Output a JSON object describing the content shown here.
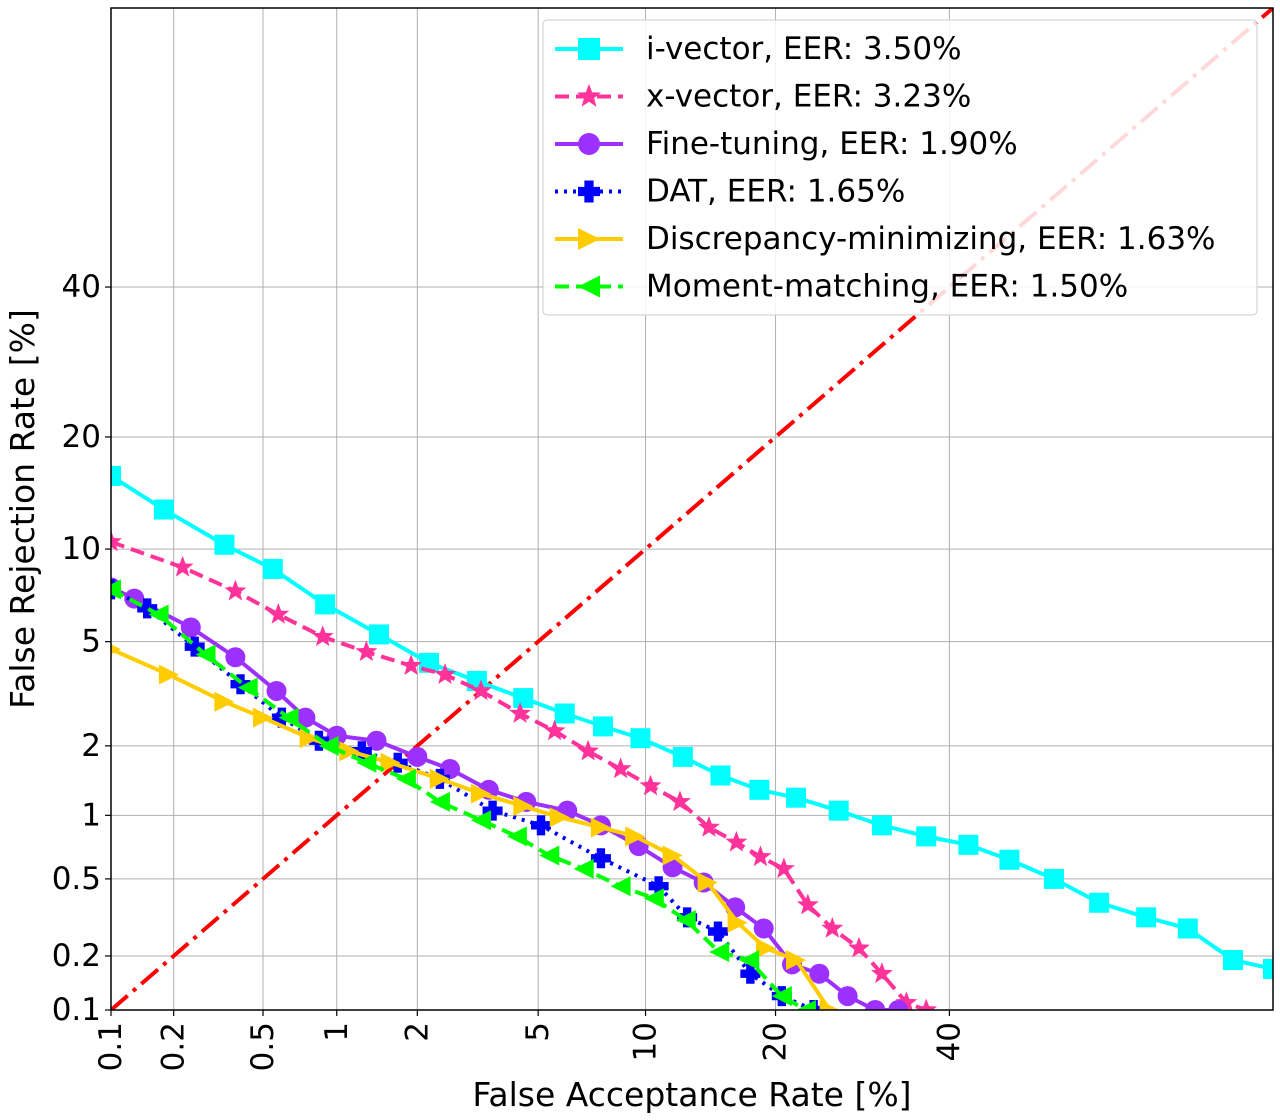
{
  "chart_data": {
    "type": "line",
    "title": "",
    "xlabel": "False Acceptance Rate [%]",
    "ylabel": "False Rejection Rate [%]",
    "xscale": "probit",
    "yscale": "probit",
    "xlim": [
      0.1,
      80
    ],
    "ylim": [
      0.1,
      80
    ],
    "grid": true,
    "legend_position": "top-right",
    "xticks": [
      {
        "value": 0.1,
        "label": "0.1"
      },
      {
        "value": 0.2,
        "label": "0.2"
      },
      {
        "value": 0.5,
        "label": "0.5"
      },
      {
        "value": 1,
        "label": "1"
      },
      {
        "value": 2,
        "label": "2"
      },
      {
        "value": 5,
        "label": "5"
      },
      {
        "value": 10,
        "label": "10"
      },
      {
        "value": 20,
        "label": "20"
      },
      {
        "value": 40,
        "label": "40"
      }
    ],
    "yticks": [
      {
        "value": 0.1,
        "label": "0.1"
      },
      {
        "value": 0.2,
        "label": "0.2"
      },
      {
        "value": 0.5,
        "label": "0.5"
      },
      {
        "value": 1,
        "label": "1"
      },
      {
        "value": 2,
        "label": "2"
      },
      {
        "value": 5,
        "label": "5"
      },
      {
        "value": 10,
        "label": "10"
      },
      {
        "value": 20,
        "label": "20"
      },
      {
        "value": 40,
        "label": "40"
      }
    ],
    "diagonal": {
      "name": "EER line",
      "color": "#ff0000",
      "x": [
        0.1,
        80
      ],
      "y": [
        0.1,
        80
      ]
    },
    "series": [
      {
        "name": "i-vector, EER:  3.50%",
        "color": "#00ffff",
        "marker": "square",
        "dash": "solid",
        "x": [
          0.1,
          0.18,
          0.34,
          0.55,
          0.9,
          1.45,
          2.2,
          3.2,
          4.5,
          6.0,
          7.7,
          9.7,
          12.4,
          15.2,
          18.5,
          22.0,
          26.5,
          31.5,
          37.0,
          42.5,
          48.0,
          54.0,
          60.0,
          66.0,
          71.0,
          76.0,
          80.0
        ],
        "y": [
          16.0,
          13.0,
          10.3,
          8.7,
          6.7,
          5.3,
          4.2,
          3.6,
          3.1,
          2.7,
          2.4,
          2.15,
          1.8,
          1.5,
          1.3,
          1.2,
          1.05,
          0.9,
          0.8,
          0.73,
          0.62,
          0.5,
          0.38,
          0.32,
          0.28,
          0.19,
          0.17
        ]
      },
      {
        "name": "x-vector, EER:  3.23%",
        "color": "#ff3399",
        "marker": "star",
        "dash": "dashed",
        "x": [
          0.1,
          0.22,
          0.38,
          0.58,
          0.88,
          1.3,
          1.9,
          2.5,
          3.3,
          4.4,
          5.6,
          7.0,
          8.6,
          10.3,
          12.2,
          14.3,
          16.5,
          18.6,
          20.8,
          23.2,
          25.8,
          28.8,
          31.5,
          34.5,
          37.0
        ],
        "y": [
          10.5,
          8.8,
          7.4,
          6.2,
          5.2,
          4.6,
          4.1,
          3.8,
          3.3,
          2.7,
          2.3,
          1.9,
          1.6,
          1.35,
          1.15,
          0.88,
          0.75,
          0.64,
          0.56,
          0.37,
          0.28,
          0.22,
          0.16,
          0.11,
          0.1
        ]
      },
      {
        "name": "Fine-tuning, EER:  1.90%",
        "color": "#9b30ff",
        "marker": "circle",
        "dash": "solid",
        "x": [
          0.1,
          0.13,
          0.24,
          0.38,
          0.57,
          0.75,
          1.0,
          1.42,
          2.0,
          2.6,
          3.5,
          4.6,
          6.1,
          7.6,
          9.6,
          11.7,
          13.9,
          16.4,
          18.9,
          21.6,
          24.4,
          27.5,
          30.7,
          33.5
        ],
        "y": [
          7.6,
          7.0,
          5.6,
          4.4,
          3.3,
          2.6,
          2.2,
          2.1,
          1.8,
          1.6,
          1.3,
          1.15,
          1.05,
          0.9,
          0.72,
          0.57,
          0.48,
          0.36,
          0.28,
          0.18,
          0.16,
          0.12,
          0.1,
          0.1
        ]
      },
      {
        "name": "DAT, EER:  1.65%",
        "color": "#0000ff",
        "marker": "plus",
        "dash": "dotted",
        "x": [
          0.1,
          0.15,
          0.25,
          0.4,
          0.6,
          0.85,
          1.25,
          1.7,
          2.4,
          3.6,
          5.1,
          7.6,
          10.8,
          12.7,
          15.0,
          17.7,
          20.6,
          23.8
        ],
        "y": [
          7.5,
          6.5,
          4.8,
          3.5,
          2.6,
          2.1,
          1.9,
          1.7,
          1.45,
          1.05,
          0.9,
          0.63,
          0.46,
          0.32,
          0.27,
          0.16,
          0.12,
          0.1
        ]
      },
      {
        "name": "Discrepancy-minimizing, EER:  1.63%",
        "color": "#ffcc00",
        "marker": "triangle-right",
        "dash": "solid",
        "x": [
          0.1,
          0.19,
          0.34,
          0.5,
          0.78,
          1.12,
          1.6,
          2.4,
          3.3,
          4.5,
          5.8,
          7.6,
          9.4,
          11.7,
          14.2,
          16.6,
          19.1,
          22.0,
          25.5
        ],
        "y": [
          4.7,
          3.8,
          3.0,
          2.6,
          2.15,
          1.9,
          1.7,
          1.45,
          1.25,
          1.1,
          0.98,
          0.88,
          0.8,
          0.65,
          0.48,
          0.3,
          0.22,
          0.19,
          0.1
        ]
      },
      {
        "name": "Moment-matching, EER:  1.50%",
        "color": "#00ff00",
        "marker": "triangle-left",
        "dash": "dashed",
        "x": [
          0.1,
          0.17,
          0.28,
          0.43,
          0.64,
          0.93,
          1.3,
          1.82,
          2.4,
          3.3,
          4.3,
          5.4,
          6.8,
          8.6,
          10.5,
          12.6,
          15.1,
          17.6,
          20.6,
          23.0
        ],
        "y": [
          7.5,
          6.2,
          4.5,
          3.4,
          2.6,
          2.0,
          1.7,
          1.45,
          1.15,
          0.95,
          0.8,
          0.65,
          0.56,
          0.46,
          0.4,
          0.31,
          0.21,
          0.19,
          0.12,
          0.1
        ]
      }
    ]
  }
}
